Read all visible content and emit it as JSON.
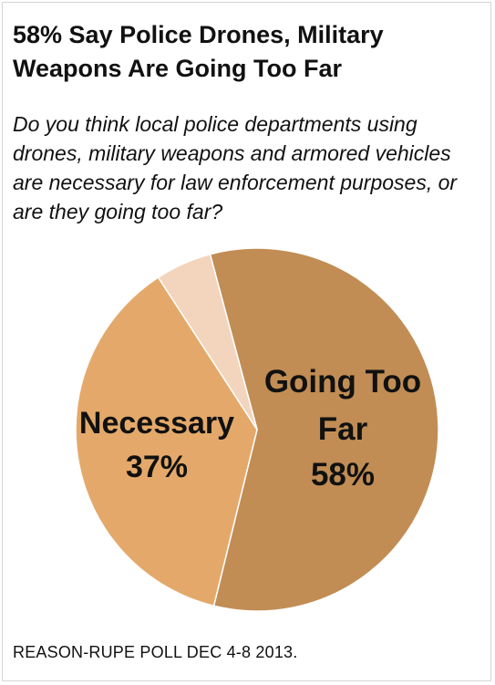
{
  "title": "58% Say Police Drones, Military Weapons Are Going Too Far",
  "question": "Do you think local police departments using drones, military weapons and armored vehicles are necessary for law enforcement purposes, or are they going too far?",
  "source": "REASON-RUPE POLL DEC 4-8 2013.",
  "chart_data": {
    "type": "pie",
    "start_angle_deg": 345,
    "direction": "clockwise",
    "slices": [
      {
        "key": "going_too_far",
        "label_lines": [
          "Going Too",
          "Far"
        ],
        "value_label": "58%",
        "value": 58,
        "color": "#c18d54"
      },
      {
        "key": "necessary",
        "label_lines": [
          "Necessary"
        ],
        "value_label": "37%",
        "value": 37,
        "color": "#e4a96a"
      },
      {
        "key": "other",
        "label_lines": [],
        "value_label": "",
        "value": 5,
        "color": "#f3d4bd"
      }
    ]
  }
}
